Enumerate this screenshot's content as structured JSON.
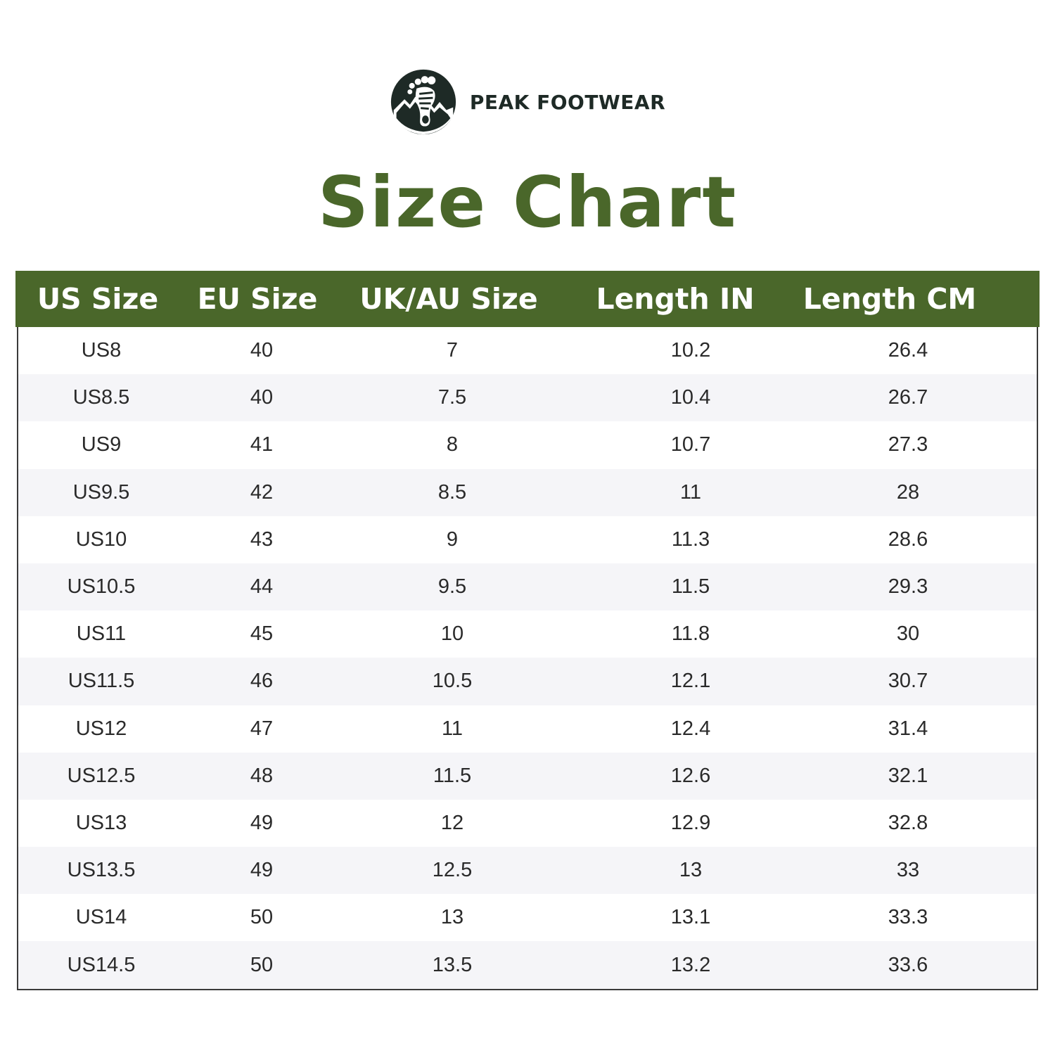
{
  "brand": {
    "name": "PEAK FOOTWEAR",
    "logo_icon": "footprint-mountain-logo-icon"
  },
  "title": "Size Chart",
  "colors": {
    "accent": "#4a672a",
    "logo": "#1e2a26",
    "row_alt": "#f5f5f8"
  },
  "table": {
    "headers": [
      "US Size",
      "EU Size",
      "UK/AU Size",
      "Length IN",
      "Length CM"
    ],
    "rows": [
      [
        "US8",
        "40",
        "7",
        "10.2",
        "26.4"
      ],
      [
        "US8.5",
        "40",
        "7.5",
        "10.4",
        "26.7"
      ],
      [
        "US9",
        "41",
        "8",
        "10.7",
        "27.3"
      ],
      [
        "US9.5",
        "42",
        "8.5",
        "11",
        "28"
      ],
      [
        "US10",
        "43",
        "9",
        "11.3",
        "28.6"
      ],
      [
        "US10.5",
        "44",
        "9.5",
        "11.5",
        "29.3"
      ],
      [
        "US11",
        "45",
        "10",
        "11.8",
        "30"
      ],
      [
        "US11.5",
        "46",
        "10.5",
        "12.1",
        "30.7"
      ],
      [
        "US12",
        "47",
        "11",
        "12.4",
        "31.4"
      ],
      [
        "US12.5",
        "48",
        "11.5",
        "12.6",
        "32.1"
      ],
      [
        "US13",
        "49",
        "12",
        "12.9",
        "32.8"
      ],
      [
        "US13.5",
        "49",
        "12.5",
        "13",
        "33"
      ],
      [
        "US14",
        "50",
        "13",
        "13.1",
        "33.3"
      ],
      [
        "US14.5",
        "50",
        "13.5",
        "13.2",
        "33.6"
      ]
    ]
  }
}
